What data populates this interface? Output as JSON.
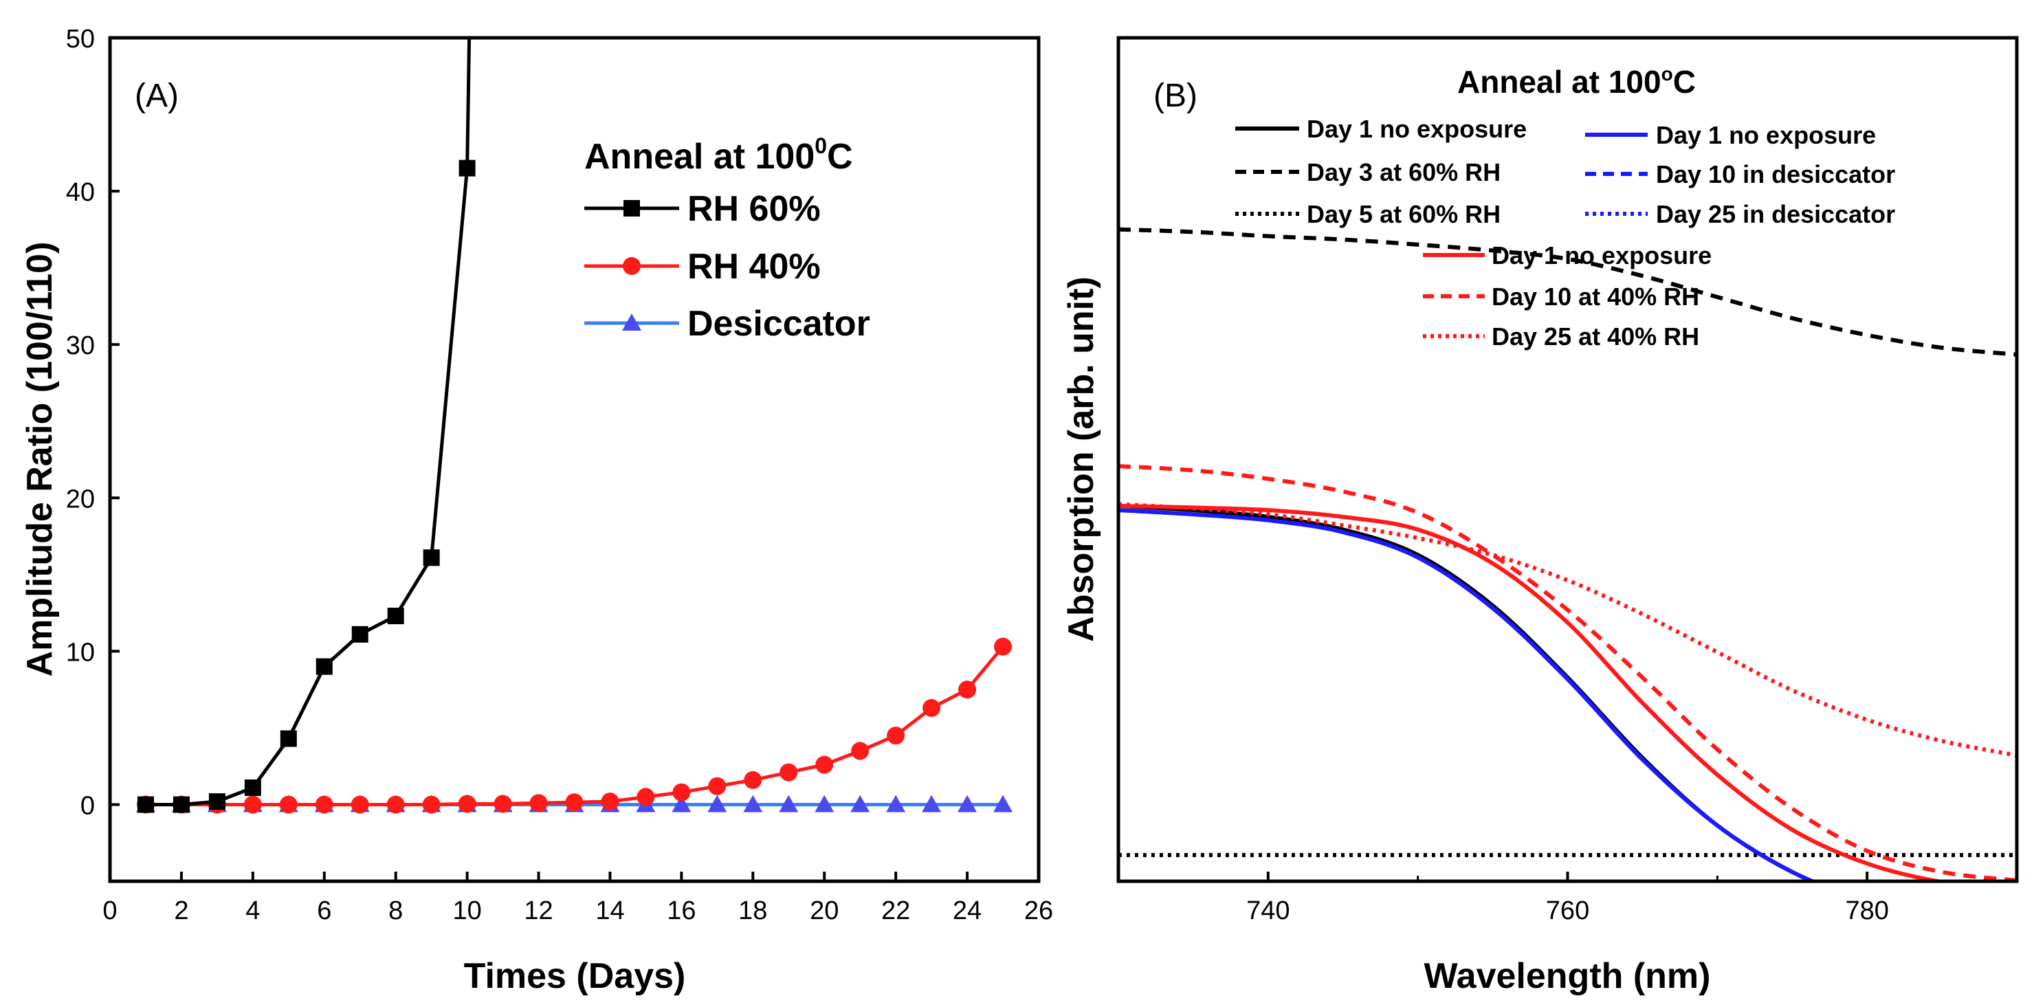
{
  "chart_data": [
    {
      "type": "line",
      "panel_label": "(A)",
      "xlabel": "Times (Days)",
      "ylabel": "Amplitude Ratio (100/110)",
      "xlim": [
        0,
        26
      ],
      "ylim": [
        -5,
        50
      ],
      "xticks": [
        "0",
        "2",
        "4",
        "6",
        "8",
        "10",
        "12",
        "14",
        "16",
        "18",
        "20",
        "22",
        "24",
        "26"
      ],
      "yticks": [
        "0",
        "10",
        "20",
        "30",
        "40",
        "50"
      ],
      "legend": {
        "title_main": "Anneal at 100",
        "title_sup": "0",
        "title_unit": "C",
        "position": "top-right"
      },
      "series": [
        {
          "name": "RH 60%",
          "color": "#000000",
          "marker": "square",
          "x": [
            1,
            2,
            3,
            4,
            5,
            6,
            7,
            8,
            9,
            10
          ],
          "y": [
            0,
            0,
            0.2,
            1.1,
            4.3,
            9.0,
            11.1,
            12.3,
            16.1,
            41.5
          ],
          "extends_above_axis": true
        },
        {
          "name": "RH 40%",
          "color": "#ff1a1a",
          "marker": "circle",
          "x": [
            1,
            2,
            3,
            4,
            5,
            6,
            7,
            8,
            9,
            10,
            11,
            12,
            13,
            14,
            15,
            16,
            17,
            18,
            19,
            20,
            21,
            22,
            23,
            24,
            25
          ],
          "y": [
            0,
            0,
            0,
            0,
            0,
            0,
            0,
            0,
            0,
            0.05,
            0.05,
            0.1,
            0.15,
            0.2,
            0.5,
            0.8,
            1.2,
            1.6,
            2.1,
            2.6,
            3.5,
            4.5,
            6.3,
            7.5,
            10.3
          ]
        },
        {
          "name": "Desiccator",
          "color": "#4a4af0",
          "line_color": "#3c7ff0",
          "marker": "triangle",
          "x": [
            1,
            2,
            3,
            4,
            5,
            6,
            7,
            8,
            9,
            10,
            11,
            12,
            13,
            14,
            15,
            16,
            17,
            18,
            19,
            20,
            21,
            22,
            23,
            24,
            25
          ],
          "y": [
            0,
            0,
            0,
            0,
            0,
            0,
            0,
            0,
            0,
            0,
            0,
            0,
            0,
            0,
            0,
            0,
            0,
            0,
            0,
            0,
            0,
            0,
            0,
            0,
            0
          ]
        }
      ]
    },
    {
      "type": "line",
      "panel_label": "(B)",
      "xlabel": "Wavelength (nm)",
      "ylabel": "Absorption (arb. unit)",
      "xlim": [
        730,
        790
      ],
      "ylim": [
        0,
        100
      ],
      "xticks": [
        "740",
        "760",
        "780"
      ],
      "yticks": [],
      "legend": {
        "title_main": "Anneal at 100",
        "title_sup": "o",
        "title_unit": "C",
        "position": "top"
      },
      "series": [
        {
          "name": "Day 1 no exposure",
          "color": "#000000",
          "style": "solid",
          "x": [
            730,
            735,
            740,
            745,
            750,
            755,
            760,
            765,
            770,
            775,
            780,
            785,
            790
          ],
          "y": [
            48.3,
            47.8,
            47.0,
            45.5,
            42.5,
            36.5,
            28.0,
            18.5,
            10.5,
            5.0,
            1.5,
            -1.0,
            -2.5
          ]
        },
        {
          "name": "Day 3 at 60% RH",
          "color": "#000000",
          "style": "dashed",
          "x": [
            730,
            735,
            740,
            745,
            750,
            755,
            760,
            765,
            770,
            775,
            780,
            785,
            790
          ],
          "y": [
            81.0,
            80.7,
            80.2,
            79.8,
            79.2,
            78.5,
            77.5,
            75.5,
            73.0,
            70.5,
            68.5,
            67.0,
            66.2
          ]
        },
        {
          "name": "Day 5 at 60% RH",
          "color": "#000000",
          "style": "dotted",
          "x": [
            730,
            790
          ],
          "y": [
            7.0,
            7.0
          ]
        },
        {
          "name": "Day 1 no exposure",
          "color": "#1a1aff",
          "style": "solid",
          "x": [
            730,
            735,
            740,
            745,
            750,
            755,
            760,
            765,
            770,
            775,
            780,
            785,
            790
          ],
          "y": [
            47.8,
            47.3,
            46.6,
            45.2,
            42.2,
            36.2,
            27.8,
            18.3,
            10.5,
            5.0,
            1.5,
            -0.8,
            -2.3
          ]
        },
        {
          "name": "Day 10 in desiccator",
          "color": "#1a1aff",
          "style": "dashed",
          "x": [],
          "y": []
        },
        {
          "name": "Day 25 in desiccator",
          "color": "#1a1aff",
          "style": "dotted",
          "x": [],
          "y": []
        },
        {
          "name": "Day 1 no exposure",
          "color": "#ff1a1a",
          "style": "solid",
          "x": [
            730,
            735,
            740,
            745,
            750,
            755,
            760,
            765,
            770,
            775,
            780,
            785,
            790
          ],
          "y": [
            48.3,
            48.1,
            47.8,
            47.0,
            45.5,
            41.5,
            34.5,
            25.0,
            16.5,
            10.0,
            6.0,
            3.8,
            2.8
          ]
        },
        {
          "name": "Day 10 at 40% RH",
          "color": "#ff1a1a",
          "style": "dashed",
          "x": [
            730,
            735,
            740,
            745,
            750,
            755,
            760,
            765,
            770,
            775,
            780,
            785,
            790
          ],
          "y": [
            53.0,
            52.5,
            51.5,
            50.0,
            47.5,
            42.5,
            36.0,
            28.0,
            19.5,
            12.5,
            7.5,
            5.0,
            4.0
          ]
        },
        {
          "name": "Day 25 at 40% RH",
          "color": "#ff1a1a",
          "style": "dotted",
          "x": [
            730,
            735,
            740,
            745,
            750,
            755,
            760,
            765,
            770,
            775,
            780,
            785,
            790
          ],
          "y": [
            48.5,
            48.0,
            47.3,
            46.0,
            44.5,
            42.5,
            39.5,
            35.5,
            31.0,
            26.5,
            23.0,
            20.5,
            18.8
          ]
        }
      ]
    }
  ]
}
